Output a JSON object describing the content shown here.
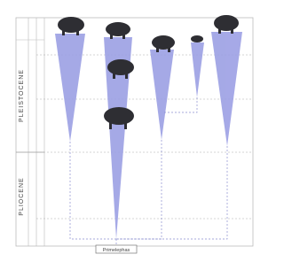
{
  "epochs": [
    "PLEISTOCENE",
    "PLIOCENE"
  ],
  "root": {
    "label": "Primelephas"
  }
}
